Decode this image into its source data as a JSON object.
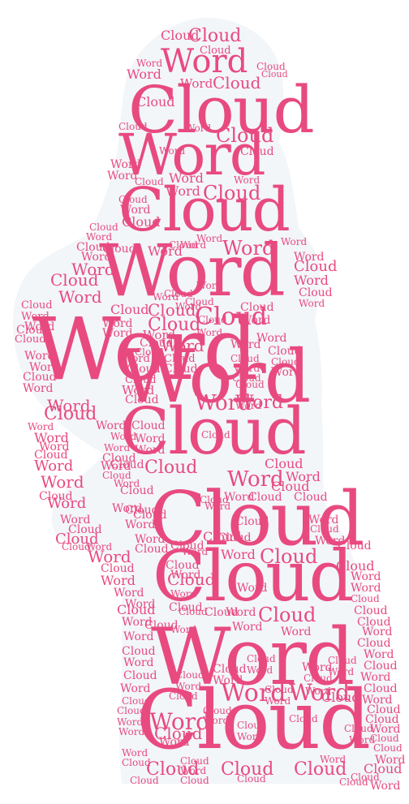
{
  "colors": {
    "text": "#e84a7f",
    "silhouette": "#f2f6f9"
  },
  "words": [
    "Word",
    "Cloud"
  ]
}
